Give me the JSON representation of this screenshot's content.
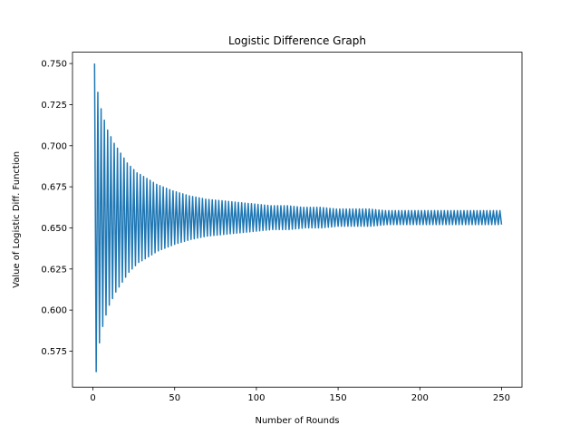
{
  "chart_data": {
    "type": "line",
    "title": "Logistic Difference Graph",
    "xlabel": "Number of Rounds",
    "ylabel": "Value of Logistic Diff. Function",
    "xlim": [
      -12.5,
      262.5
    ],
    "ylim": [
      0.5531,
      0.7569
    ],
    "xticks": [
      0,
      50,
      100,
      150,
      200,
      250
    ],
    "yticks": [
      0.575,
      0.6,
      0.625,
      0.65,
      0.675,
      0.7,
      0.725,
      0.75
    ],
    "xtick_labels": [
      "0",
      "50",
      "100",
      "150",
      "200",
      "250"
    ],
    "ytick_labels": [
      "0.575",
      "0.600",
      "0.625",
      "0.650",
      "0.675",
      "0.700",
      "0.725",
      "0.750"
    ],
    "grid": false,
    "series": [
      {
        "color": "#1f77b4",
        "x": [
          1,
          2,
          3,
          4,
          5,
          6,
          7,
          8,
          9,
          10,
          11,
          12,
          13,
          14,
          15,
          16,
          17,
          18,
          19,
          20,
          22,
          24,
          26,
          28,
          30,
          35,
          40,
          45,
          50,
          60,
          70,
          80,
          90,
          100,
          110,
          120,
          130,
          140,
          150,
          160,
          170,
          180,
          190,
          200,
          210,
          220,
          230,
          240,
          250
        ],
        "y": [
          0.75,
          0.5625,
          0.738,
          0.58,
          0.731,
          0.59,
          0.724,
          0.597,
          0.719,
          0.603,
          0.715,
          0.607,
          0.711,
          0.611,
          0.708,
          0.614,
          0.706,
          0.617,
          0.704,
          0.62,
          0.623,
          0.625,
          0.627,
          0.629,
          0.63,
          0.633,
          0.636,
          0.638,
          0.64,
          0.643,
          0.645,
          0.646,
          0.647,
          0.648,
          0.649,
          0.649,
          0.65,
          0.65,
          0.651,
          0.651,
          0.651,
          0.652,
          0.652,
          0.652,
          0.652,
          0.652,
          0.652,
          0.652,
          0.652
        ]
      }
    ]
  }
}
